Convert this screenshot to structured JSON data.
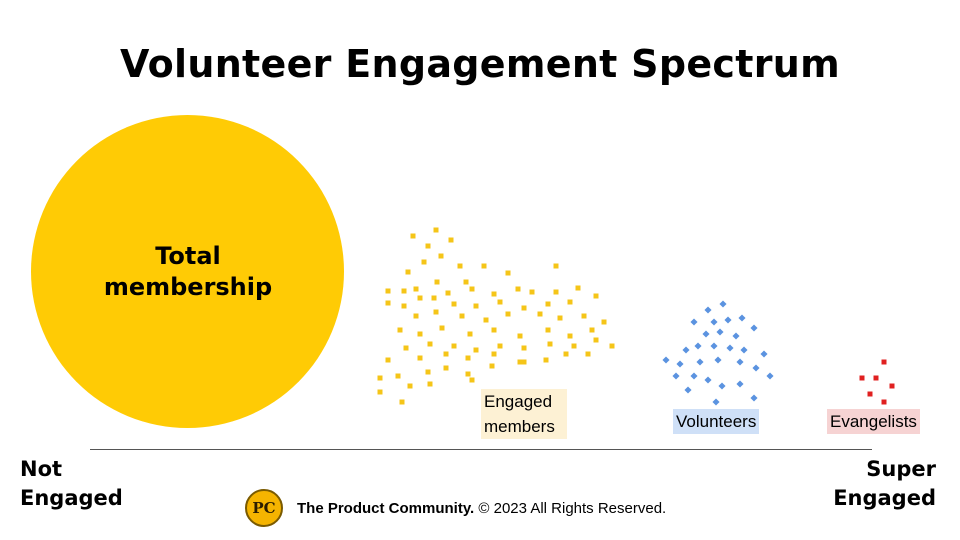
{
  "title": "Volunteer Engagement Spectrum",
  "circle": {
    "label_line1": "Total",
    "label_line2": "membership"
  },
  "groups": {
    "engaged_line1": "Engaged",
    "engaged_line2": "members",
    "volunteers": "Volunteers",
    "evangelists": "Evangelists"
  },
  "axis": {
    "left_line1": "Not",
    "left_line2": "Engaged",
    "right_line1": "Super",
    "right_line2": "Engaged"
  },
  "footer": {
    "logo_text": "PC",
    "org": "The Product Community.",
    "rights": " © 2023 All Rights Reserved."
  },
  "colors": {
    "membership": "#ffcb05",
    "engaged": "#f5c518",
    "volunteers": "#5b93e0",
    "evangelists": "#e02020"
  }
}
